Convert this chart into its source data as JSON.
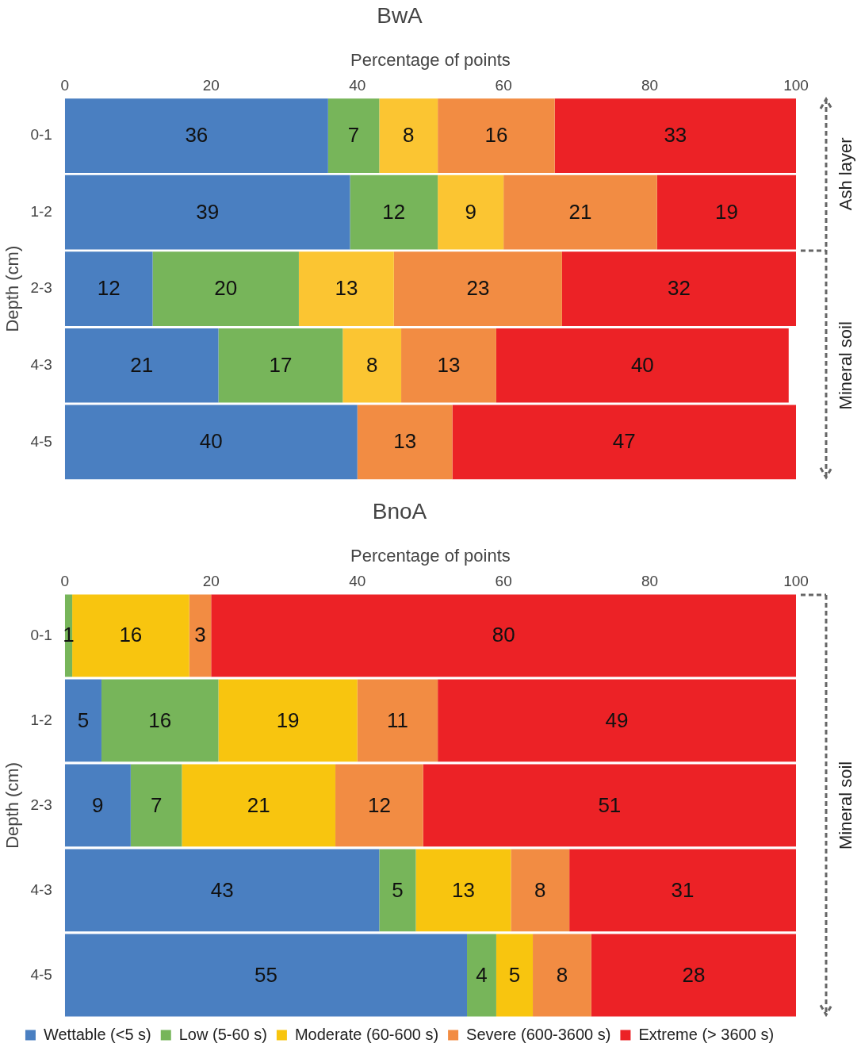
{
  "chart_data": [
    {
      "type": "bar",
      "orientation": "horizontal",
      "stacked": true,
      "title": "BwA",
      "xlabel": "Percentage of points",
      "ylabel": "Depth (cm)",
      "categories": [
        "0-1",
        "1-2",
        "2-3",
        "4-3",
        "4-5"
      ],
      "xlim": [
        0,
        100
      ],
      "xticks": [
        0,
        20,
        40,
        60,
        80,
        100
      ],
      "grid": false,
      "legend": false,
      "data_labels": true,
      "series": [
        {
          "color": "#4a7fc1",
          "values": [
            36,
            39,
            12,
            21,
            40
          ]
        },
        {
          "color": "#77b55a",
          "values": [
            7,
            12,
            20,
            17,
            null
          ]
        },
        {
          "color": "#fbc532",
          "values": [
            8,
            9,
            13,
            8,
            null
          ]
        },
        {
          "color": "#f28c43",
          "values": [
            16,
            21,
            23,
            13,
            13
          ]
        },
        {
          "color": "#ec2226",
          "values": [
            33,
            19,
            32,
            40,
            47
          ]
        }
      ],
      "annotations": [
        "Ash layer",
        "Mineral soil"
      ]
    },
    {
      "type": "bar",
      "orientation": "horizontal",
      "stacked": true,
      "title": "BnoA",
      "xlabel": "Percentage of points",
      "ylabel": "Depth (cm)",
      "categories": [
        "0-1",
        "1-2",
        "2-3",
        "4-3",
        "4-5"
      ],
      "xlim": [
        0,
        100
      ],
      "xticks": [
        0,
        20,
        40,
        60,
        80,
        100
      ],
      "grid": false,
      "legend": "bottom",
      "data_labels": true,
      "series": [
        {
          "name": "Wettable (<5 s)",
          "color": "#4a7fc1",
          "values": [
            null,
            5,
            9,
            43,
            55
          ]
        },
        {
          "name": "Low (5-60 s)",
          "color": "#77b55a",
          "values": [
            1,
            16,
            7,
            5,
            4
          ]
        },
        {
          "name": "Moderate (60-600 s)",
          "color": "#f8c50f",
          "values": [
            16,
            19,
            21,
            13,
            5
          ]
        },
        {
          "name": "Severe (600-3600 s)",
          "color": "#f28c43",
          "values": [
            3,
            11,
            12,
            8,
            8
          ]
        },
        {
          "name": "Extreme (> 3600 s)",
          "color": "#ec2226",
          "values": [
            80,
            49,
            51,
            31,
            28
          ]
        }
      ],
      "annotations": [
        "Mineral soil"
      ]
    }
  ]
}
